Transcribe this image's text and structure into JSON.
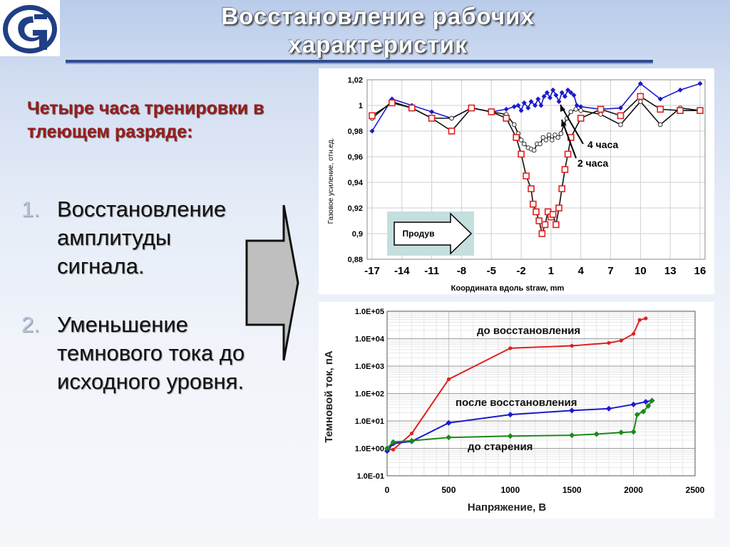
{
  "slide": {
    "title_line1": "Восстановление рабочих",
    "title_line2": "характеристик",
    "subtitle": "Четыре часа тренировки в тлеющем разряде:",
    "items": [
      {
        "num": "1.",
        "text": "Восстановление амплитуды сигнала."
      },
      {
        "num": "2.",
        "text": "Уменьшение темнового тока до исходного уровня."
      }
    ],
    "logo_icon": "organization-logo-icon",
    "arrow_icon": "right-arrow-icon"
  },
  "chart_data": [
    {
      "type": "line",
      "xlabel": "Координата вдоль straw, mm",
      "ylabel": "Газовое усиление, отн.ед.",
      "xlim": [
        -17.5,
        16.5
      ],
      "ylim": [
        0.88,
        1.02
      ],
      "x_ticks": [
        "-17",
        "-14",
        "-11",
        "-8",
        "-5",
        "-2",
        "1",
        "4",
        "7",
        "10",
        "13",
        "16"
      ],
      "y_ticks": [
        "0,88",
        "0,9",
        "0,92",
        "0,94",
        "0,96",
        "0,98",
        "1",
        "1,02"
      ],
      "grid": true,
      "annotations": [
        {
          "text": "4 часа",
          "x": 2,
          "y": 1.0
        },
        {
          "text": "2 часа",
          "x": 2,
          "y": 0.96
        }
      ],
      "flow_label": "Продув",
      "series": [
        {
          "color": "#1a1acc",
          "marker": "diamond",
          "x": [
            -17,
            -15,
            -13,
            -11,
            -9,
            -7,
            -5,
            -3.5,
            -2.7,
            -2.3,
            -2,
            -1.7,
            -1.3,
            -1,
            -0.6,
            -0.3,
            0,
            0.3,
            0.6,
            0.9,
            1.2,
            1.5,
            1.8,
            2.1,
            2.4,
            2.7,
            3,
            3.3,
            3.6,
            4,
            6,
            8,
            10,
            12,
            14,
            16
          ],
          "y": [
            0.98,
            1.005,
            1.0,
            0.995,
            0.99,
            0.998,
            0.995,
            0.997,
            0.999,
            1.0,
            0.996,
            1.002,
            0.998,
            1.003,
            1.0,
            1.005,
            1.0,
            1.007,
            1.01,
            1.006,
            1.012,
            1.008,
            1.003,
            1.01,
            1.007,
            1.012,
            1.01,
            1.008,
            1.0,
            0.999,
            0.997,
            0.998,
            1.017,
            1.005,
            1.012,
            1.017
          ]
        },
        {
          "color": "#111111",
          "marker": "circle",
          "x": [
            -17,
            -15,
            -13,
            -11,
            -9,
            -7,
            -5,
            -3.5,
            -2.7,
            -2.3,
            -2,
            -1.7,
            -1.3,
            -1,
            -0.7,
            -0.4,
            -0.1,
            0.2,
            0.5,
            0.8,
            1.1,
            1.4,
            1.7,
            2,
            2.3,
            2.6,
            3,
            3.5,
            4,
            6,
            8,
            10,
            12,
            14,
            16
          ],
          "y": [
            0.99,
            1.003,
            0.998,
            0.99,
            0.99,
            0.998,
            0.995,
            0.993,
            0.985,
            0.978,
            0.973,
            0.97,
            0.967,
            0.966,
            0.965,
            0.97,
            0.97,
            0.975,
            0.973,
            0.977,
            0.973,
            0.977,
            0.975,
            0.978,
            0.985,
            0.99,
            0.995,
            0.997,
            0.996,
            0.993,
            0.985,
            1.003,
            0.985,
            0.998,
            0.996
          ]
        },
        {
          "color": "#111111",
          "marker": "square-red",
          "x": [
            -17,
            -15,
            -13,
            -11,
            -9,
            -7,
            -5,
            -3.5,
            -2.5,
            -2,
            -1.5,
            -1,
            -0.8,
            -0.5,
            -0.2,
            0.1,
            0.4,
            0.7,
            1,
            1.2,
            1.5,
            1.8,
            2.1,
            2.4,
            2.7,
            3,
            4,
            6,
            8,
            10,
            12,
            14,
            16
          ],
          "y": [
            0.992,
            1.002,
            0.998,
            0.99,
            0.98,
            0.998,
            0.995,
            0.99,
            0.975,
            0.962,
            0.945,
            0.935,
            0.923,
            0.917,
            0.91,
            0.9,
            0.907,
            0.917,
            0.913,
            0.915,
            0.907,
            0.92,
            0.935,
            0.95,
            0.962,
            0.975,
            0.99,
            0.997,
            0.992,
            1.007,
            0.997,
            0.996,
            0.996
          ]
        }
      ]
    },
    {
      "type": "line",
      "xlabel": "Напряжение, В",
      "ylabel": "Темновой ток, пА",
      "ylog": true,
      "xlim": [
        0,
        2500
      ],
      "ylim": [
        0.1,
        100000
      ],
      "x_ticks": [
        "0",
        "500",
        "1000",
        "1500",
        "2000",
        "2500"
      ],
      "y_ticks": [
        "1.0E-01",
        "1.0E+00",
        "1.0E+01",
        "1.0E+02",
        "1.0E+03",
        "1.0E+04",
        "1.0E+05"
      ],
      "grid": true,
      "series": [
        {
          "name": "до восстановления",
          "color": "#e02020",
          "marker": "circle",
          "x": [
            0,
            50,
            200,
            500,
            1000,
            1500,
            1800,
            1900,
            2000,
            2050,
            2100
          ],
          "y": [
            0.9,
            0.9,
            3.5,
            330,
            4500,
            5500,
            7000,
            8500,
            15000,
            48000,
            55000
          ]
        },
        {
          "name": "после восстановления",
          "color": "#1a1acc",
          "marker": "diamond",
          "x": [
            0,
            50,
            200,
            500,
            1000,
            1500,
            1800,
            2000,
            2100,
            2150
          ],
          "y": [
            0.8,
            1.5,
            1.8,
            8.5,
            17,
            24,
            28,
            40,
            50,
            55
          ]
        },
        {
          "name": "до старения",
          "color": "#1a8a1a",
          "marker": "diamond",
          "x": [
            0,
            50,
            200,
            500,
            1000,
            1500,
            1700,
            1900,
            2000,
            2030,
            2080,
            2120,
            2150
          ],
          "y": [
            1.0,
            1.7,
            1.9,
            2.5,
            2.8,
            3.0,
            3.3,
            3.8,
            4.0,
            17,
            22,
            35,
            55
          ]
        }
      ]
    }
  ]
}
